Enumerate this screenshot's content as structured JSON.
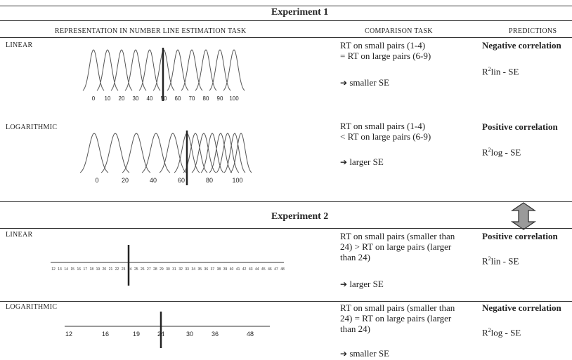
{
  "experiment1": {
    "title": "Experiment 1",
    "headers": {
      "representation": "REPRESENTATION IN NUMBER LINE ESTIMATION TASK",
      "comparison": "COMPARISON TASK",
      "predictions": "PREDICTIONS"
    },
    "linear": {
      "label": "LINEAR",
      "ticks": [
        "0",
        "10",
        "20",
        "30",
        "40",
        "50",
        "60",
        "70",
        "80",
        "90",
        "100"
      ],
      "comparison_line1": "RT on small pairs (1-4)",
      "comparison_line2": "= RT on large pairs (6-9)",
      "arrow": "➔",
      "result": "smaller SE",
      "prediction": "Negative correlation",
      "formula_r": "R",
      "formula_sup": "2",
      "formula_rest": "lin - SE"
    },
    "log": {
      "label": "LOGARITHMIC",
      "ticks": [
        "0",
        "20",
        "40",
        "60",
        "80",
        "100"
      ],
      "comparison_line1": "RT on small pairs (1-4)",
      "comparison_line2": "< RT on large pairs (6-9)",
      "arrow": "➔",
      "result": "larger SE",
      "prediction": "Positive correlation",
      "formula_r": "R",
      "formula_sup": "2",
      "formula_rest": "log - SE"
    }
  },
  "experiment2": {
    "title": "Experiment 2",
    "linear": {
      "label": "LINEAR",
      "ticks": [
        "12",
        "13",
        "14",
        "15",
        "16",
        "17",
        "18",
        "19",
        "20",
        "21",
        "22",
        "23",
        "24",
        "25",
        "26",
        "27",
        "28",
        "29",
        "30",
        "31",
        "32",
        "33",
        "34",
        "35",
        "36",
        "37",
        "38",
        "39",
        "40",
        "41",
        "42",
        "43",
        "44",
        "45",
        "46",
        "47",
        "48"
      ],
      "comparison_line1": "RT on small pairs (smaller than",
      "comparison_line2": "24)  > RT on large pairs (larger",
      "comparison_line3": "than 24)",
      "arrow": "➔",
      "result": "larger SE",
      "prediction": "Positive correlation",
      "formula_r": "R",
      "formula_sup": "2",
      "formula_rest": "lin - SE"
    },
    "log": {
      "label": "LOGARITHMIC",
      "ticks": [
        "12",
        "16",
        "19",
        "24",
        "30",
        "36",
        "48"
      ],
      "comparison_line1": "RT on small pairs (smaller than",
      "comparison_line2": "24) = RT on large pairs (larger",
      "comparison_line3": "than 24)",
      "arrow": "➔",
      "result": "smaller SE",
      "prediction": "Negative correlation",
      "formula_r": "R",
      "formula_sup": "2",
      "formula_rest": "log - SE"
    }
  },
  "colors": {
    "ink": "#222222",
    "rule": "#333333",
    "arrow_fill": "#9a9a9a"
  },
  "icons": {
    "double_arrow": "double-vertical-arrow-icon"
  }
}
